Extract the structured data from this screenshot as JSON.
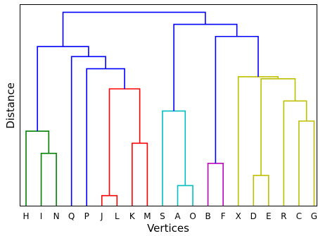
{
  "chart_data": {
    "type": "dendrogram",
    "title": "",
    "xlabel": "Vertices",
    "ylabel": "Distance",
    "y_ticks_shown": false,
    "grid": false,
    "legend": "none",
    "leaves": [
      "H",
      "I",
      "N",
      "Q",
      "P",
      "J",
      "L",
      "K",
      "M",
      "S",
      "A",
      "O",
      "B",
      "F",
      "X",
      "D",
      "E",
      "R",
      "C",
      "G"
    ],
    "ylim": [
      0,
      1.0
    ],
    "merges": [
      {
        "left": "I",
        "right": "N",
        "height": 0.26,
        "color": "#008000"
      },
      {
        "left": "H",
        "right": "I+N",
        "height": 0.37,
        "color": "#008000"
      },
      {
        "left": "J",
        "right": "L",
        "height": 0.05,
        "color": "#ff0000"
      },
      {
        "left": "K",
        "right": "M",
        "height": 0.31,
        "color": "#ff0000"
      },
      {
        "left": "J+L",
        "right": "K+M",
        "height": 0.58,
        "color": "#ff0000"
      },
      {
        "left": "P",
        "right": "J+L+K+M",
        "height": 0.68,
        "color": "#0000ff"
      },
      {
        "left": "Q",
        "right": "P+J+L+K+M",
        "height": 0.74,
        "color": "#0000ff"
      },
      {
        "left": "H+I+N",
        "right": "Q+P+J+L+K+M",
        "height": 0.79,
        "color": "#0000ff"
      },
      {
        "left": "A",
        "right": "O",
        "height": 0.1,
        "color": "#00bfbf"
      },
      {
        "left": "S",
        "right": "A+O",
        "height": 0.47,
        "color": "#00bfbf"
      },
      {
        "left": "B",
        "right": "F",
        "height": 0.21,
        "color": "#bf00bf"
      },
      {
        "left": "D",
        "right": "E",
        "height": 0.15,
        "color": "#bfbf00"
      },
      {
        "left": "C",
        "right": "G",
        "height": 0.42,
        "color": "#bfbf00"
      },
      {
        "left": "R",
        "right": "C+G",
        "height": 0.52,
        "color": "#bfbf00"
      },
      {
        "left": "D+E",
        "right": "R+C+G",
        "height": 0.63,
        "color": "#bfbf00"
      },
      {
        "left": "X",
        "right": "D+E+R+C+G",
        "height": 0.64,
        "color": "#bfbf00"
      },
      {
        "left": "B+F",
        "right": "X+D+E+R+C+G",
        "height": 0.84,
        "color": "#0000ff"
      },
      {
        "left": "S+A+O",
        "right": "B+F+X+D+E+R+C+G",
        "height": 0.9,
        "color": "#0000ff"
      },
      {
        "left": "H+I+N+Q+P+J+L+K+M",
        "right": "S+A+O+B+F+X+D+E+R+C+G",
        "height": 0.96,
        "color": "#0000ff"
      }
    ]
  }
}
